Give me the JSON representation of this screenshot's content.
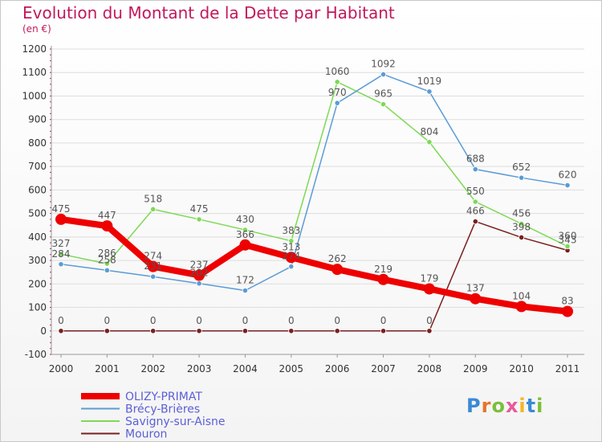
{
  "title": "Evolution du Montant de la Dette par Habitant",
  "subtitle": "(en €)",
  "logo": {
    "text": "Proxiti",
    "letter_colors": [
      "#3a8ad6",
      "#e8732a",
      "#7bbf3a",
      "#e85a9a",
      "#f2b821",
      "#3a8ad6",
      "#7bbf3a"
    ]
  },
  "chart_data": {
    "type": "line",
    "categories": [
      "2000",
      "2001",
      "2002",
      "2003",
      "2004",
      "2005",
      "2006",
      "2007",
      "2008",
      "2009",
      "2010",
      "2011"
    ],
    "y_ticks": [
      "-100",
      "0",
      "100",
      "200",
      "300",
      "400",
      "500",
      "600",
      "700",
      "800",
      "900",
      "1000",
      "1100",
      "1200"
    ],
    "ylim": [
      -100,
      1200
    ],
    "grid": "y",
    "legend_position": "bottom-left",
    "series": [
      {
        "name": "Mouron",
        "color": "#7a1f1f",
        "values": [
          0,
          0,
          0,
          0,
          0,
          0,
          0,
          0,
          0,
          466,
          398,
          343
        ],
        "labels": [
          "0",
          "0",
          "0",
          "0",
          "0",
          "0",
          "0",
          "0",
          "0",
          "466",
          "398",
          "343"
        ]
      },
      {
        "name": "Savigny-sur-Aisne",
        "color": "#7ed957",
        "values": [
          327,
          286,
          518,
          475,
          430,
          383,
          1060,
          965,
          804,
          550,
          456,
          360
        ],
        "labels": [
          "327",
          "286",
          "518",
          "475",
          "430",
          "383",
          "1060",
          "965",
          "804",
          "550",
          "456",
          "360"
        ]
      },
      {
        "name": "Brécy-Brières",
        "color": "#5b9bd5",
        "values": [
          284,
          258,
          231,
          202,
          172,
          274,
          970,
          1092,
          1019,
          688,
          652,
          620
        ],
        "labels": [
          "284",
          "258",
          "231",
          "202",
          "172",
          "274",
          "970",
          "1092",
          "1019",
          "688",
          "652",
          "620"
        ]
      },
      {
        "name": "OLIZY-PRIMAT",
        "color": "#ee0000",
        "values": [
          475,
          447,
          274,
          237,
          366,
          313,
          262,
          219,
          179,
          137,
          104,
          83
        ],
        "labels": [
          "475",
          "447",
          "274",
          "237",
          "366",
          "313",
          "262",
          "219",
          "179",
          "137",
          "104",
          "83"
        ]
      }
    ],
    "legend_order": [
      "OLIZY-PRIMAT",
      "Brécy-Brières",
      "Savigny-sur-Aisne",
      "Mouron"
    ],
    "legend_text_color": "#5a5fd6"
  }
}
